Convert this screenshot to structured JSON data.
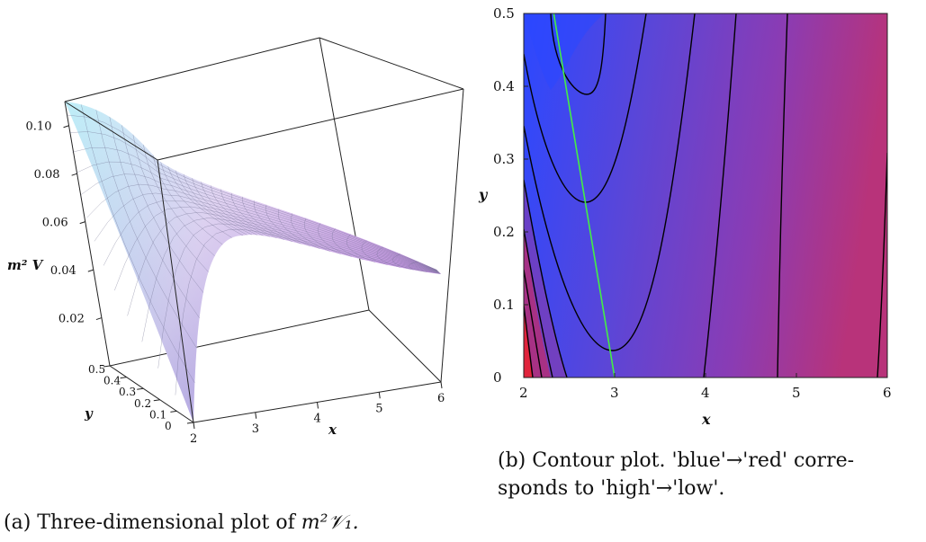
{
  "chart_data": [
    {
      "type": "surface",
      "title": "",
      "xlabel": "x",
      "ylabel": "y",
      "zlabel": "m² V",
      "xlim": [
        2,
        6
      ],
      "ylim": [
        0,
        0.5
      ],
      "zlim": [
        0,
        0.11
      ],
      "x_ticks": [
        "2",
        "3",
        "4",
        "5",
        "6"
      ],
      "y_ticks": [
        "0",
        "0.1",
        "0.2",
        "0.3",
        "0.4",
        "0.5"
      ],
      "z_ticks": [
        "0.02",
        "0.04",
        "0.06",
        "0.08",
        "0.10"
      ],
      "surface_corners": [
        {
          "x": 2,
          "y": 0.5,
          "z": 0.11
        },
        {
          "x": 6,
          "y": 0.5,
          "z": 0.05
        },
        {
          "x": 6,
          "y": 0,
          "z": 0.04
        },
        {
          "x": 2,
          "y": 0,
          "z": 0.0
        }
      ],
      "colormap": [
        "#a8e8f5",
        "#e6d0f2",
        "#cc80e0"
      ]
    },
    {
      "type": "contour",
      "title": "",
      "xlabel": "x",
      "ylabel": "y",
      "xlim": [
        2,
        6
      ],
      "ylim": [
        0,
        0.5
      ],
      "x_ticks": [
        "2",
        "3",
        "4",
        "5",
        "6"
      ],
      "y_ticks": [
        "0",
        "0.1",
        "0.2",
        "0.3",
        "0.4",
        "0.5"
      ],
      "color_high": "#2244ff",
      "color_low": "#dd2244",
      "valley_curve": [
        {
          "x": 2.33,
          "y": 0.5
        },
        {
          "x": 3.0,
          "y": 0
        }
      ],
      "valley_color": "#44ee44",
      "contour_minima": [
        {
          "x": 2.45,
          "y": 0.39
        },
        {
          "x": 2.68,
          "y": 0.24
        },
        {
          "x": 2.95,
          "y": 0.04
        }
      ]
    }
  ],
  "captions": {
    "a_label": "(a) Three-dimensional plot of ",
    "a_math": "m²𝒱₁.",
    "b_line1": "(b) Contour plot.   'blue'→'red' corre-",
    "b_line2": "sponds to 'high'→'low'."
  }
}
